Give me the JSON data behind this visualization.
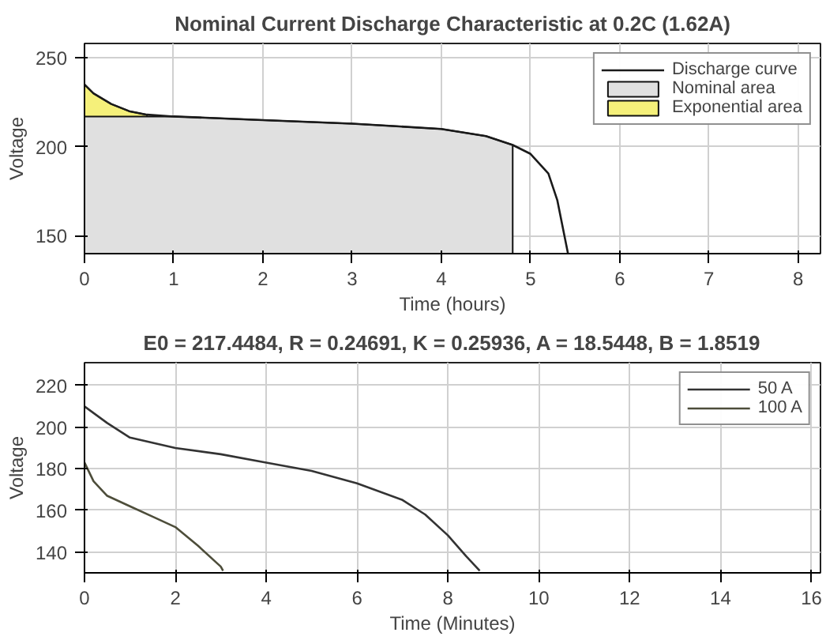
{
  "chart_data": [
    {
      "type": "line",
      "title": "Nominal Current Discharge Characteristic at 0.2C (1.62A)",
      "xlabel": "Time (hours)",
      "ylabel": "Voltage",
      "xlim": [
        0,
        8.25
      ],
      "ylim": [
        140,
        258
      ],
      "xticks": [
        0,
        1,
        2,
        3,
        4,
        5,
        6,
        7,
        8
      ],
      "yticks": [
        150,
        200,
        250
      ],
      "grid": true,
      "legend": "top right",
      "series": [
        {
          "name": "Exponential area",
          "type": "area",
          "color": "#f5f07a",
          "x": [
            0,
            0.1,
            0.3,
            0.5,
            0.7
          ],
          "values": [
            235,
            230,
            224,
            220,
            218
          ]
        },
        {
          "name": "Nominal area",
          "type": "area",
          "color": "#e0e0e0",
          "x": [
            0,
            0.7,
            1,
            2,
            3,
            4,
            4.5,
            4.8
          ],
          "values": [
            217,
            217,
            217,
            215,
            213,
            210,
            206,
            201
          ]
        },
        {
          "name": "Discharge curve",
          "type": "line",
          "color": "#1a1a1a",
          "x": [
            0,
            0.1,
            0.3,
            0.5,
            0.7,
            1,
            2,
            3,
            4,
            4.5,
            4.8,
            5,
            5.2,
            5.3,
            5.4,
            5.42
          ],
          "values": [
            235,
            230,
            224,
            220,
            218,
            217,
            215,
            213,
            210,
            206,
            201,
            196,
            185,
            170,
            145,
            140
          ]
        }
      ]
    },
    {
      "type": "line",
      "title": "E0 = 217.4484, R = 0.24691, K = 0.25936, A = 18.5448, B = 1.8519",
      "xlabel": "Time (Minutes)",
      "ylabel": "Voltage",
      "xlim": [
        0,
        16.2
      ],
      "ylim": [
        130,
        231
      ],
      "xticks": [
        0,
        2,
        4,
        6,
        8,
        10,
        12,
        14,
        16
      ],
      "yticks": [
        140,
        160,
        180,
        200,
        220
      ],
      "grid": true,
      "legend": "top right",
      "series": [
        {
          "name": "50 A",
          "color": "#333333",
          "x": [
            0,
            0.5,
            1,
            2,
            3,
            4,
            5,
            6,
            7,
            7.5,
            8,
            8.4,
            8.7
          ],
          "values": [
            210,
            202,
            195,
            190,
            187,
            183,
            179,
            173,
            165,
            158,
            148,
            138,
            131
          ]
        },
        {
          "name": "100 A",
          "color": "#4d4d3a",
          "x": [
            0,
            0.2,
            0.5,
            1,
            1.5,
            2,
            2.5,
            3,
            3.05
          ],
          "values": [
            183,
            174,
            167,
            162,
            157,
            152,
            143,
            133,
            131
          ]
        }
      ]
    }
  ]
}
